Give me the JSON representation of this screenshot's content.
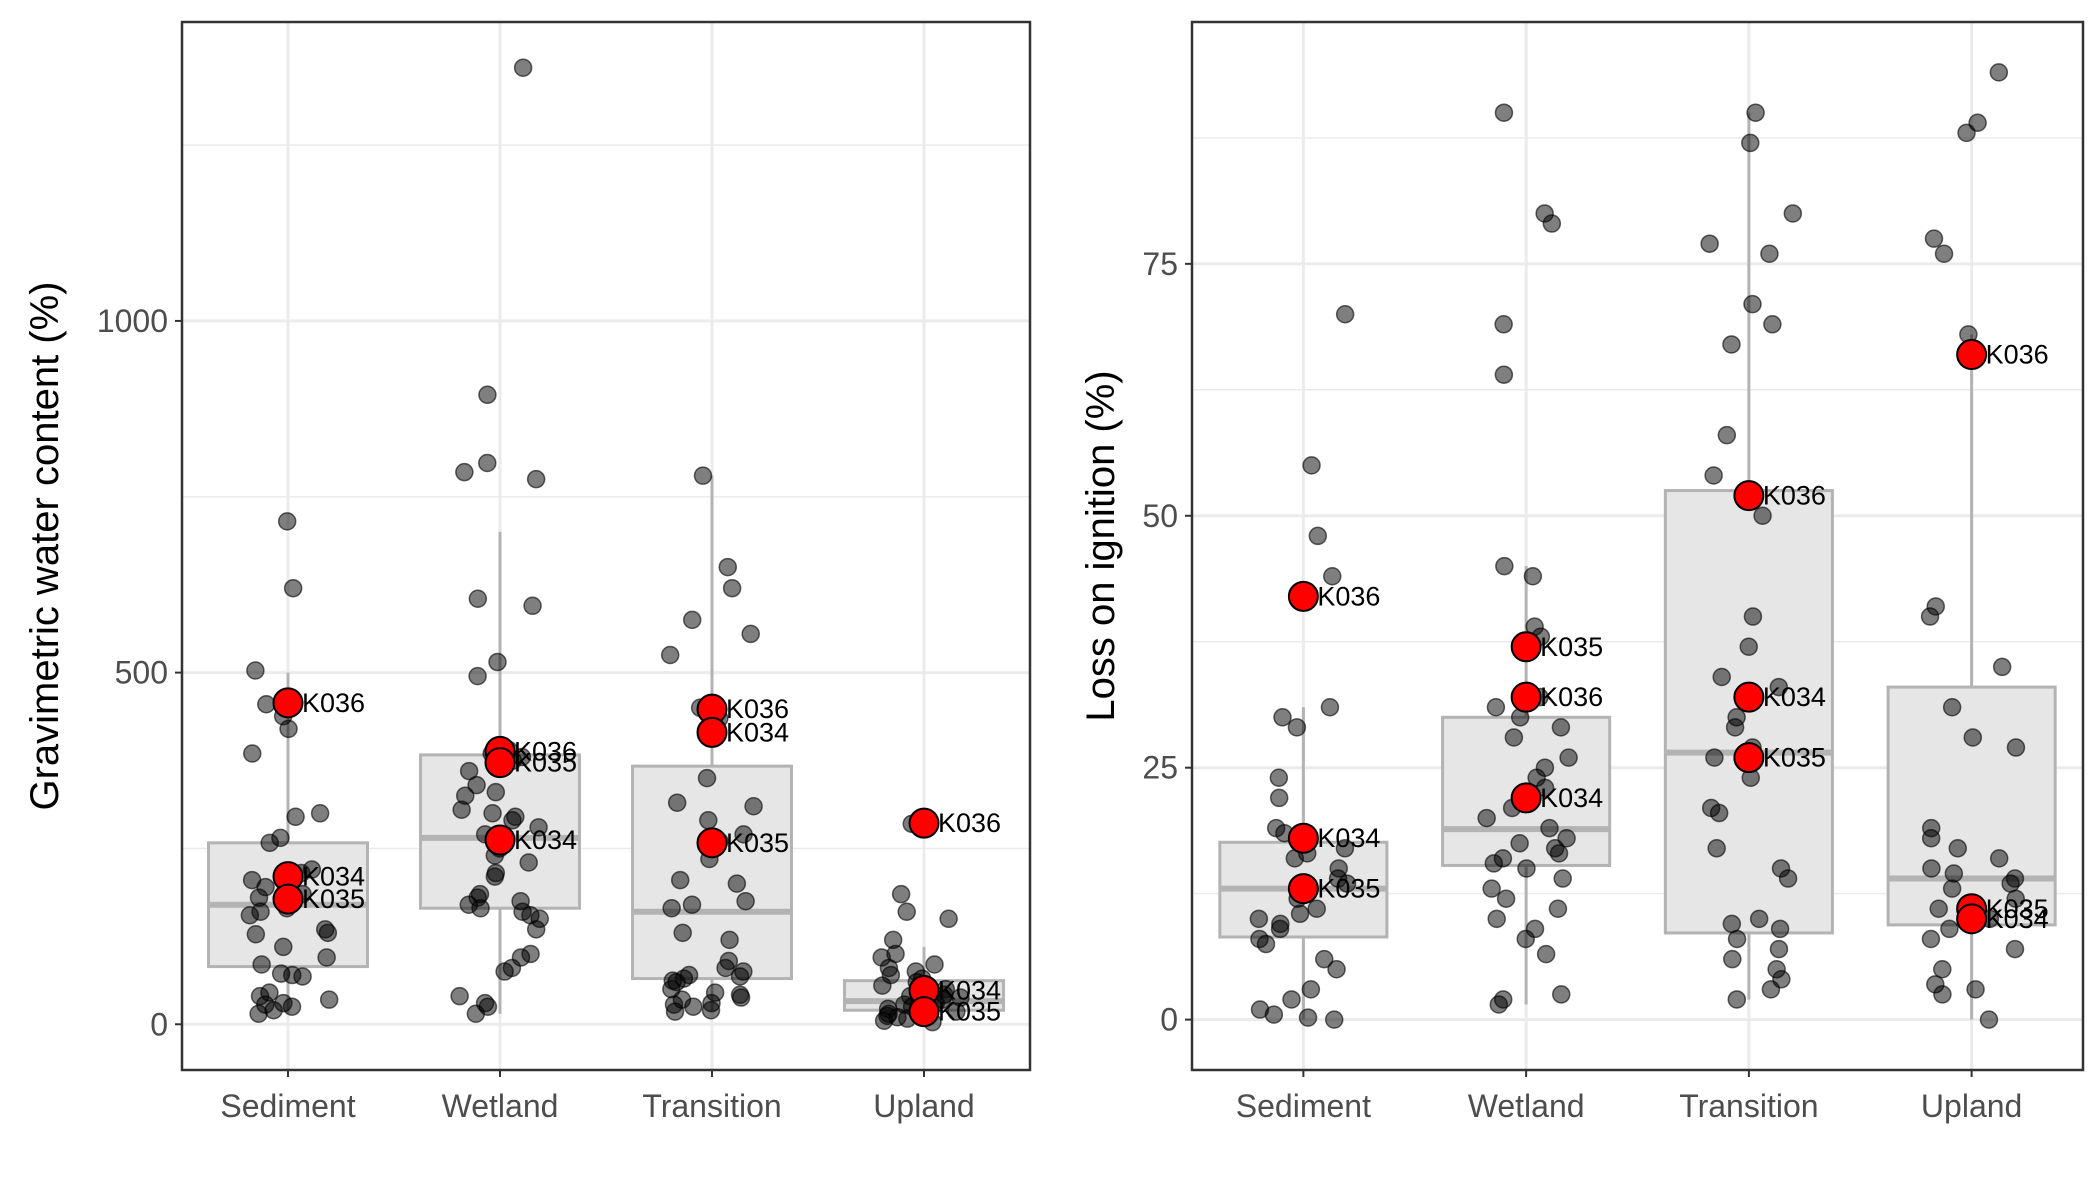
{
  "colors": {
    "panel_border": "#333333",
    "grid": "#ebebeb",
    "box_fill": "#e6e6e6",
    "box_stroke": "#b3b3b3",
    "point": "#000000",
    "highlight": "#ff0000"
  },
  "chart_data": [
    {
      "type": "boxplot",
      "ylabel": "Gravimetric water content (%)",
      "xlabel": "",
      "ylim": [
        -65,
        1425
      ],
      "yticks": [
        0,
        500,
        1000
      ],
      "grid": true,
      "categories": [
        "Sediment",
        "Wetland",
        "Transition",
        "Upland"
      ],
      "boxes": [
        {
          "q1": 82,
          "median": 170,
          "q3": 258,
          "whisker_low": 15,
          "whisker_high": 500
        },
        {
          "q1": 165,
          "median": 265,
          "q3": 383,
          "whisker_low": 15,
          "whisker_high": 700
        },
        {
          "q1": 65,
          "median": 160,
          "q3": 367,
          "whisker_low": 18,
          "whisker_high": 780
        },
        {
          "q1": 20,
          "median": 33,
          "q3": 62,
          "whisker_low": 0,
          "whisker_high": 110
        }
      ],
      "points": [
        [
          715,
          620,
          503,
          455,
          438,
          420,
          385,
          300,
          295,
          265,
          258,
          220,
          215,
          205,
          200,
          195,
          185,
          180,
          175,
          165,
          160,
          155,
          135,
          130,
          128,
          110,
          95,
          85,
          72,
          70,
          68,
          45,
          40,
          35,
          30,
          28,
          25,
          20,
          15
        ],
        [
          1360,
          895,
          798,
          785,
          775,
          605,
          595,
          515,
          495,
          390,
          385,
          380,
          375,
          360,
          340,
          330,
          325,
          305,
          300,
          295,
          290,
          280,
          270,
          260,
          250,
          240,
          230,
          215,
          210,
          185,
          180,
          175,
          170,
          165,
          160,
          155,
          150,
          135,
          100,
          95,
          80,
          75,
          40,
          30,
          25,
          15
        ],
        [
          780,
          650,
          620,
          575,
          555,
          525,
          450,
          435,
          350,
          315,
          310,
          290,
          270,
          260,
          235,
          205,
          200,
          175,
          170,
          165,
          130,
          120,
          90,
          80,
          75,
          70,
          68,
          65,
          62,
          60,
          50,
          45,
          42,
          38,
          35,
          30,
          28,
          25,
          20,
          18
        ],
        [
          285,
          185,
          160,
          150,
          120,
          100,
          95,
          85,
          80,
          75,
          70,
          65,
          60,
          55,
          50,
          45,
          42,
          40,
          38,
          35,
          30,
          28,
          25,
          22,
          18,
          15,
          12,
          10,
          8,
          5,
          3
        ]
      ],
      "highlights": [
        {
          "category": "Sediment",
          "label": "K036",
          "value": 457
        },
        {
          "category": "Sediment",
          "label": "K034",
          "value": 210
        },
        {
          "category": "Sediment",
          "label": "K035",
          "value": 178
        },
        {
          "category": "Wetland",
          "label": "K036",
          "value": 388
        },
        {
          "category": "Wetland",
          "label": "K035",
          "value": 372
        },
        {
          "category": "Wetland",
          "label": "K034",
          "value": 262
        },
        {
          "category": "Transition",
          "label": "K036",
          "value": 448
        },
        {
          "category": "Transition",
          "label": "K034",
          "value": 415
        },
        {
          "category": "Transition",
          "label": "K035",
          "value": 258
        },
        {
          "category": "Upland",
          "label": "K036",
          "value": 286
        },
        {
          "category": "Upland",
          "label": "K034",
          "value": 48
        },
        {
          "category": "Upland",
          "label": "K035",
          "value": 18
        }
      ]
    },
    {
      "type": "boxplot",
      "ylabel": "Loss on ignition (%)",
      "xlabel": "",
      "ylim": [
        -5,
        99
      ],
      "yticks": [
        0,
        25,
        50,
        75
      ],
      "grid": true,
      "categories": [
        "Sediment",
        "Wetland",
        "Transition",
        "Upland"
      ],
      "boxes": [
        {
          "q1": 8.2,
          "median": 13,
          "q3": 17.6,
          "whisker_low": 0,
          "whisker_high": 31
        },
        {
          "q1": 15.3,
          "median": 18.9,
          "q3": 30,
          "whisker_low": 1.5,
          "whisker_high": 45
        },
        {
          "q1": 8.6,
          "median": 26.5,
          "q3": 52.5,
          "whisker_low": 2,
          "whisker_high": 90
        },
        {
          "q1": 9.4,
          "median": 14,
          "q3": 33,
          "whisker_low": 0,
          "whisker_high": 68
        }
      ],
      "points": [
        [
          70,
          55,
          48,
          44,
          31,
          30,
          29,
          24,
          22,
          19,
          18.5,
          17,
          16.5,
          16,
          15,
          14,
          13.5,
          12,
          11,
          10.5,
          10,
          9.5,
          9,
          8,
          7.5,
          6,
          5,
          3,
          2,
          1,
          0.5,
          0.2,
          0
        ],
        [
          90,
          80,
          79,
          69,
          64,
          45,
          44,
          39,
          38,
          32,
          31,
          30,
          29,
          28,
          26,
          25,
          24,
          23,
          22,
          21,
          20,
          19,
          18,
          17.5,
          17,
          16.5,
          16,
          15.5,
          15,
          14,
          13,
          12,
          11,
          10,
          9,
          8,
          6.5,
          2.5,
          2,
          1.5
        ],
        [
          90,
          87,
          80,
          77,
          76,
          71,
          69,
          67,
          58,
          54,
          50,
          40,
          37,
          34,
          33,
          30,
          29,
          27,
          26,
          24,
          21,
          20.5,
          17,
          15,
          14,
          10,
          9.5,
          9,
          8,
          7,
          6,
          5,
          4,
          3,
          2
        ],
        [
          94,
          89,
          88,
          77.5,
          76,
          68,
          41,
          40,
          35,
          31,
          28,
          27,
          19,
          18,
          17,
          16,
          15,
          14.5,
          14,
          13.5,
          13,
          12,
          11,
          10,
          9,
          8,
          7,
          5,
          3.5,
          3,
          2.5,
          0
        ]
      ],
      "highlights": [
        {
          "category": "Sediment",
          "label": "K036",
          "value": 42
        },
        {
          "category": "Sediment",
          "label": "K034",
          "value": 18
        },
        {
          "category": "Sediment",
          "label": "K035",
          "value": 13
        },
        {
          "category": "Wetland",
          "label": "K035",
          "value": 37
        },
        {
          "category": "Wetland",
          "label": "K036",
          "value": 32
        },
        {
          "category": "Wetland",
          "label": "K034",
          "value": 22
        },
        {
          "category": "Transition",
          "label": "K036",
          "value": 52
        },
        {
          "category": "Transition",
          "label": "K034",
          "value": 32
        },
        {
          "category": "Transition",
          "label": "K035",
          "value": 26
        },
        {
          "category": "Upland",
          "label": "K036",
          "value": 66
        },
        {
          "category": "Upland",
          "label": "K035",
          "value": 11
        },
        {
          "category": "Upland",
          "label": "K034",
          "value": 10
        }
      ]
    }
  ]
}
